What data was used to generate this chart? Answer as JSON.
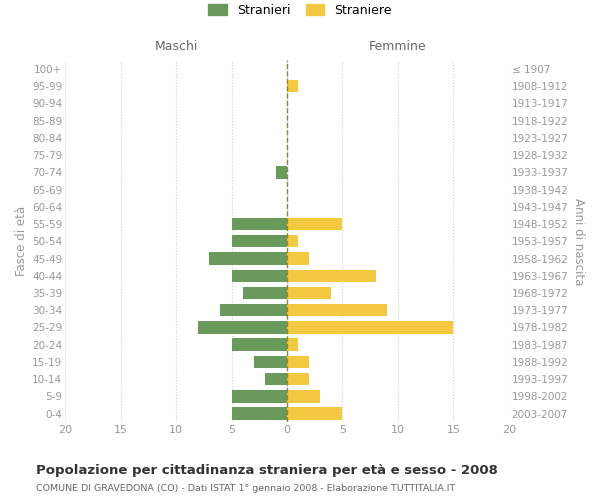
{
  "age_groups": [
    "100+",
    "95-99",
    "90-94",
    "85-89",
    "80-84",
    "75-79",
    "70-74",
    "65-69",
    "60-64",
    "55-59",
    "50-54",
    "45-49",
    "40-44",
    "35-39",
    "30-34",
    "25-29",
    "20-24",
    "15-19",
    "10-14",
    "5-9",
    "0-4"
  ],
  "birth_years": [
    "≤ 1907",
    "1908-1912",
    "1913-1917",
    "1918-1922",
    "1923-1927",
    "1928-1932",
    "1933-1937",
    "1938-1942",
    "1943-1947",
    "1948-1952",
    "1953-1957",
    "1958-1962",
    "1963-1967",
    "1968-1972",
    "1973-1977",
    "1978-1982",
    "1983-1987",
    "1988-1992",
    "1993-1997",
    "1998-2002",
    "2003-2007"
  ],
  "maschi": [
    0,
    0,
    0,
    0,
    0,
    0,
    1,
    0,
    0,
    5,
    5,
    7,
    5,
    4,
    6,
    8,
    5,
    3,
    2,
    5,
    5
  ],
  "femmine": [
    0,
    1,
    0,
    0,
    0,
    0,
    0,
    0,
    0,
    5,
    1,
    2,
    8,
    4,
    9,
    15,
    1,
    2,
    2,
    3,
    5
  ],
  "color_maschi": "#6a9a5b",
  "color_femmine": "#f5c842",
  "color_center_line": "#888833",
  "xlim": 20,
  "title": "Popolazione per cittadinanza straniera per età e sesso - 2008",
  "subtitle": "COMUNE DI GRAVEDONA (CO) - Dati ISTAT 1° gennaio 2008 - Elaborazione TUTTITALIA.IT",
  "ylabel_left": "Fasce di età",
  "ylabel_right": "Anni di nascita",
  "label_maschi": "Maschi",
  "label_femmine": "Femmine",
  "legend_stranieri": "Stranieri",
  "legend_straniere": "Straniere",
  "background_color": "#ffffff",
  "grid_color": "#cccccc",
  "label_color": "#999999",
  "xticks": [
    -20,
    -15,
    -10,
    -5,
    0,
    5,
    10,
    15,
    20
  ],
  "xtick_labels": [
    "20",
    "15",
    "10",
    "5",
    "0",
    "5",
    "10",
    "15",
    "20"
  ]
}
